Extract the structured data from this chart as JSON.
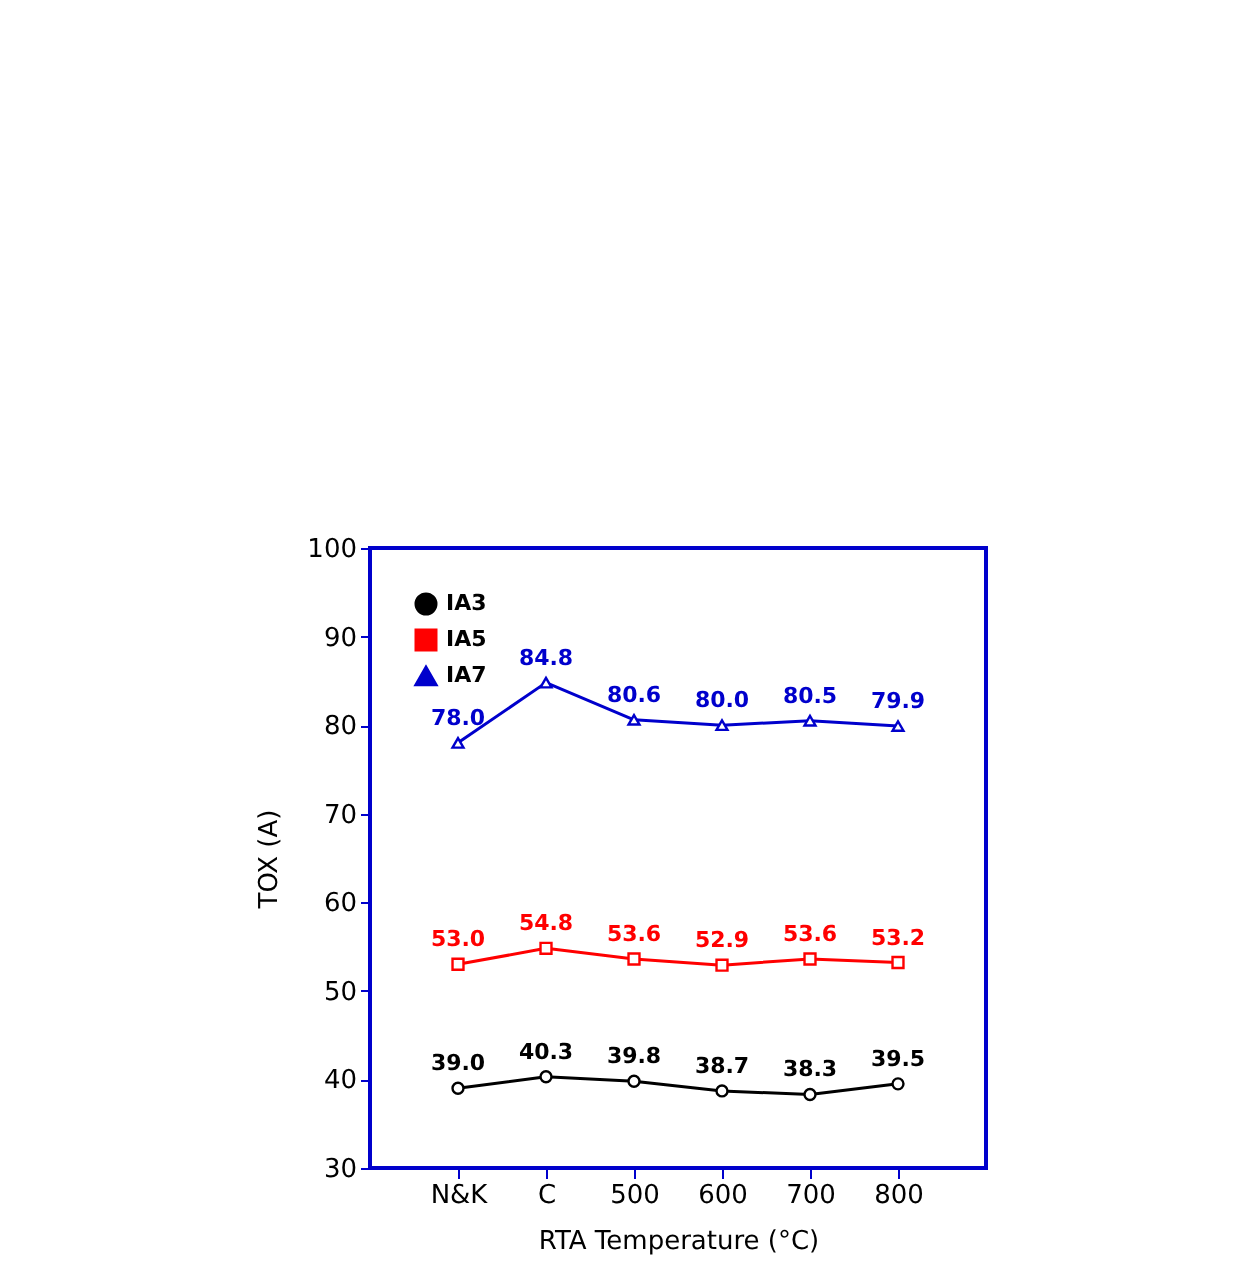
{
  "chart_data": {
    "type": "line",
    "xlabel": "RTA Temperature (°C)",
    "ylabel": "TOX (A)",
    "categories": [
      "N&K",
      "C",
      "500",
      "600",
      "700",
      "800"
    ],
    "series": [
      {
        "name": "IA3",
        "color": "#000000",
        "marker": "circle",
        "values": [
          39.0,
          40.3,
          39.8,
          38.7,
          38.3,
          39.5
        ],
        "value_labels": [
          "39.0",
          "40.3",
          "39.8",
          "38.7",
          "38.3",
          "39.5"
        ]
      },
      {
        "name": "IA5",
        "color": "#ff0000",
        "marker": "square",
        "values": [
          53.0,
          54.8,
          53.6,
          52.9,
          53.6,
          53.2
        ],
        "value_labels": [
          "53.0",
          "54.8",
          "53.6",
          "52.9",
          "53.6",
          "53.2"
        ]
      },
      {
        "name": "IA7",
        "color": "#0000cc",
        "marker": "triangle",
        "values": [
          78.0,
          84.8,
          80.6,
          80.0,
          80.5,
          79.9
        ],
        "value_labels": [
          "78.0",
          "84.8",
          "80.6",
          "80.0",
          "80.5",
          "79.9"
        ]
      }
    ],
    "ylim": [
      30,
      100
    ],
    "yticks": [
      30,
      40,
      50,
      60,
      70,
      80,
      90,
      100
    ],
    "grid": false,
    "legend": "top left",
    "line_style": "solid"
  }
}
